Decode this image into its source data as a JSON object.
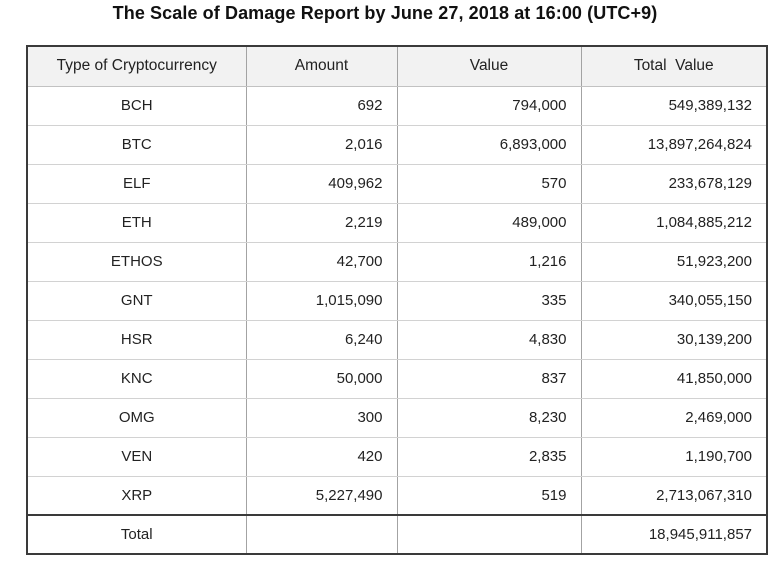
{
  "page": {
    "title": "The Scale of Damage Report by June 27, 2018 at 16:00 (UTC+9)"
  },
  "chart_data": {
    "type": "table",
    "title": "The Scale of Damage Report by June 27, 2018 at 16:00 (UTC+9)",
    "columns": [
      "Type of Cryptocurrency",
      "Amount",
      "Value",
      "Total  Value"
    ],
    "rows": [
      {
        "type": "BCH",
        "amount": "692",
        "value": "794,000",
        "total_value": "549,389,132"
      },
      {
        "type": "BTC",
        "amount": "2,016",
        "value": "6,893,000",
        "total_value": "13,897,264,824"
      },
      {
        "type": "ELF",
        "amount": "409,962",
        "value": "570",
        "total_value": "233,678,129"
      },
      {
        "type": "ETH",
        "amount": "2,219",
        "value": "489,000",
        "total_value": "1,084,885,212"
      },
      {
        "type": "ETHOS",
        "amount": "42,700",
        "value": "1,216",
        "total_value": "51,923,200"
      },
      {
        "type": "GNT",
        "amount": "1,015,090",
        "value": "335",
        "total_value": "340,055,150"
      },
      {
        "type": "HSR",
        "amount": "6,240",
        "value": "4,830",
        "total_value": "30,139,200"
      },
      {
        "type": "KNC",
        "amount": "50,000",
        "value": "837",
        "total_value": "41,850,000"
      },
      {
        "type": "OMG",
        "amount": "300",
        "value": "8,230",
        "total_value": "2,469,000"
      },
      {
        "type": "VEN",
        "amount": "420",
        "value": "2,835",
        "total_value": "1,190,700"
      },
      {
        "type": "XRP",
        "amount": "5,227,490",
        "value": "519",
        "total_value": "2,713,067,310"
      }
    ],
    "footer": {
      "label": "Total",
      "amount": "",
      "value": "",
      "total_value": "18,945,911,857"
    }
  },
  "colors": {
    "border_dark": "#3a3a3a",
    "header_bg": "#f2f2f2",
    "vertical_divider": "#a3a3a3",
    "row_line": "#d2d2d2",
    "text": "#1f1f1f"
  }
}
